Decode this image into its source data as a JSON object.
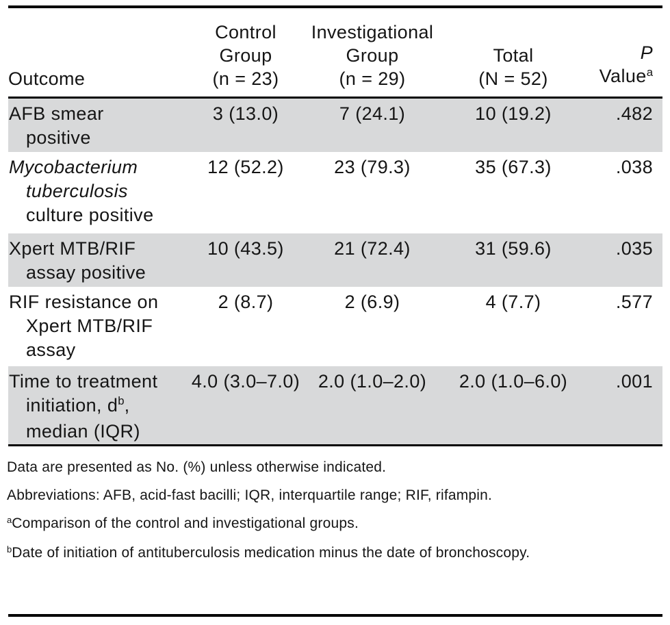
{
  "table": {
    "headers": {
      "outcome": [
        [
          {
            "t": "Outcome"
          }
        ]
      ],
      "control": [
        [
          {
            "t": "Control"
          }
        ],
        [
          {
            "t": "Group"
          }
        ],
        [
          {
            "t": "(n = 23)"
          }
        ]
      ],
      "investigational": [
        [
          {
            "t": "Investigational"
          }
        ],
        [
          {
            "t": "Group"
          }
        ],
        [
          {
            "t": "(n = 29)"
          }
        ]
      ],
      "total": [
        [
          {
            "t": "Total"
          }
        ],
        [
          {
            "t": "(N = 52)"
          }
        ]
      ],
      "p_value": [
        [
          {
            "t": "P",
            "i": true
          }
        ],
        [
          {
            "t": "Value"
          },
          {
            "t": "a",
            "sup": true
          }
        ]
      ]
    },
    "rows": [
      {
        "outcome": [
          [
            {
              "t": "AFB smear"
            }
          ],
          [
            {
              "t": "positive"
            }
          ]
        ],
        "control": "3 (13.0)",
        "investigational": "7 (24.1)",
        "total": "10 (19.2)",
        "p": ".482"
      },
      {
        "outcome": [
          [
            {
              "t": "Mycobacterium",
              "i": true
            }
          ],
          [
            {
              "t": "tuberculosis",
              "i": true
            }
          ],
          [
            {
              "t": "culture positive"
            }
          ]
        ],
        "control": "12 (52.2)",
        "investigational": "23 (79.3)",
        "total": "35 (67.3)",
        "p": ".038"
      },
      {
        "outcome": [
          [
            {
              "t": "Xpert MTB/RIF"
            }
          ],
          [
            {
              "t": "assay positive"
            }
          ]
        ],
        "control": "10 (43.5)",
        "investigational": "21 (72.4)",
        "total": "31 (59.6)",
        "p": ".035"
      },
      {
        "outcome": [
          [
            {
              "t": "RIF resistance on"
            }
          ],
          [
            {
              "t": "Xpert MTB/RIF"
            }
          ],
          [
            {
              "t": "assay"
            }
          ]
        ],
        "control": "2 (8.7)",
        "investigational": "2 (6.9)",
        "total": "4 (7.7)",
        "p": ".577"
      },
      {
        "outcome": [
          [
            {
              "t": "Time to treatment"
            }
          ],
          [
            {
              "t": "initiation, d"
            },
            {
              "t": "b",
              "sup": true
            },
            {
              "t": ","
            }
          ],
          [
            {
              "t": "median (IQR)"
            }
          ]
        ],
        "control": "4.0 (3.0–7.0)",
        "investigational": "2.0 (1.0–2.0)",
        "total": "2.0 (1.0–6.0)",
        "p": ".001"
      }
    ]
  },
  "footnotes": [
    [
      {
        "t": "Data are presented as No. (%) unless otherwise indicated."
      }
    ],
    [
      {
        "t": "Abbreviations: AFB, acid-fast bacilli; IQR, interquartile range; RIF, rifampin."
      }
    ],
    [
      {
        "t": "a",
        "sup": true
      },
      {
        "t": "Comparison of the control and investigational groups."
      }
    ],
    [
      {
        "t": "b",
        "sup": true
      },
      {
        "t": "Date of initiation of antituberculosis medication minus the date of bronchoscopy."
      }
    ]
  ],
  "colors": {
    "row_shade": "#d8d9da",
    "rule": "#000000",
    "text": "#151515"
  }
}
